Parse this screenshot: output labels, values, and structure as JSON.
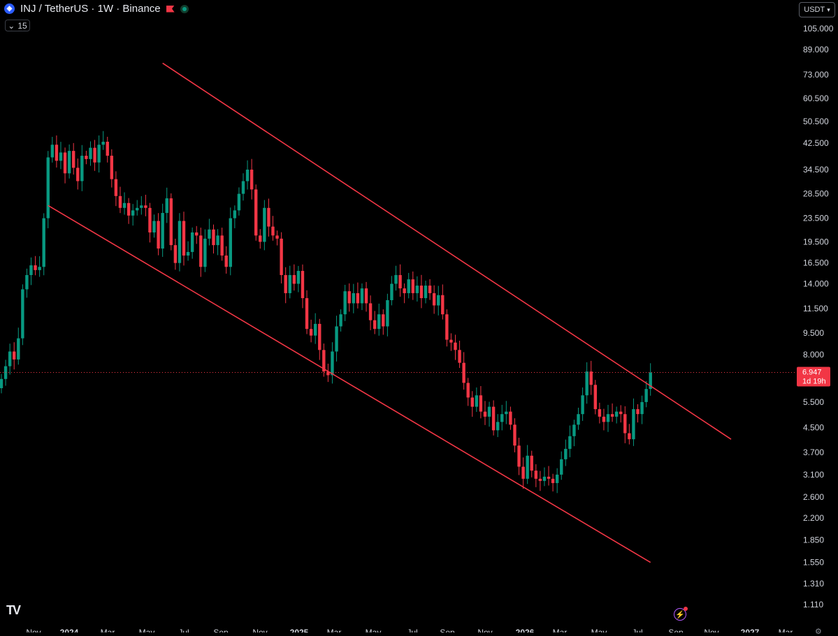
{
  "header": {
    "symbol_icon_name": "injective-logo-icon",
    "title": "INJ / TetherUS · 1W · Binance",
    "flag_icon_name": "flag-icon",
    "status_icon_name": "market-open-icon",
    "collapse_label": "15",
    "currency_label": "USDT"
  },
  "footer": {
    "logo_text": "TV",
    "bolt_icon_name": "bolt-icon",
    "settings_icon_name": "gear-icon"
  },
  "colors": {
    "up": "#089981",
    "down": "#f23645",
    "trendline": "#f23645",
    "background": "#000000",
    "axis_text": "#d1d4dc"
  },
  "chart_data": {
    "type": "candlestick",
    "title": "INJ / TetherUS · 1W · Binance",
    "scale": "log",
    "ylim": [
      1.0,
      118
    ],
    "x_tick_labels": [
      "Nov",
      "2024",
      "Mar",
      "May",
      "Jul",
      "Sep",
      "Nov",
      "2025",
      "Mar",
      "May",
      "Jul",
      "Sep",
      "Nov",
      "2026",
      "Mar",
      "May",
      "Jul",
      "Sep",
      "Nov",
      "2027",
      "Mar"
    ],
    "y_tick_labels": [
      "105.000",
      "89.000",
      "73.000",
      "60.500",
      "50.500",
      "42.500",
      "34.500",
      "28.500",
      "23.500",
      "19.500",
      "16.500",
      "14.000",
      "11.500",
      "9.500",
      "8.000",
      "5.500",
      "4.500",
      "3.700",
      "3.100",
      "2.600",
      "2.200",
      "1.850",
      "1.550",
      "1.310",
      "1.110"
    ],
    "last_price": "6.947",
    "countdown": "1d 19h",
    "closes": [
      6.6,
      7.3,
      8.2,
      7.7,
      9.1,
      13.4,
      15.0,
      16.2,
      15.6,
      16.0,
      23.5,
      38.0,
      42.0,
      37.0,
      39.5,
      33.5,
      40.0,
      35.0,
      31.5,
      38.5,
      37.5,
      41.0,
      36.5,
      42.0,
      43.0,
      38.5,
      32.0,
      28.0,
      25.5,
      26.5,
      24.0,
      25.0,
      25.5,
      26.0,
      25.5,
      21.0,
      23.0,
      18.5,
      24.5,
      27.5,
      19.0,
      16.5,
      23.0,
      17.5,
      18.0,
      21.0,
      20.5,
      16.0,
      20.0,
      21.5,
      19.0,
      20.5,
      17.5,
      16.0,
      23.5,
      25.0,
      28.5,
      31.5,
      34.5,
      29.5,
      20.5,
      19.5,
      25.5,
      22.0,
      20.5,
      20.0,
      15.0,
      13.0,
      15.0,
      14.0,
      15.5,
      12.5,
      9.8,
      9.3,
      10.2,
      8.3,
      7.0,
      6.8,
      8.2,
      10.0,
      11.0,
      13.2,
      12.0,
      13.0,
      12.0,
      13.5,
      12.0,
      10.5,
      9.8,
      11.0,
      10.0,
      12.3,
      14.0,
      15.0,
      13.5,
      13.0,
      14.5,
      13.0,
      13.8,
      12.5,
      13.8,
      13.0,
      11.8,
      12.8,
      11.0,
      9.0,
      8.8,
      8.3,
      7.5,
      6.4,
      5.7,
      5.3,
      5.8,
      5.1,
      4.9,
      5.3,
      4.4,
      4.7,
      5.0,
      5.1,
      4.6,
      3.9,
      3.3,
      3.0,
      3.6,
      3.2,
      3.0,
      2.95,
      3.05,
      3.0,
      2.9,
      3.1,
      3.5,
      3.8,
      4.2,
      4.6,
      5.0,
      5.8,
      7.0,
      6.3,
      5.2,
      4.9,
      4.7,
      5.0,
      4.9,
      5.1,
      5.0,
      4.3,
      4.1,
      5.2,
      5.0,
      5.5,
      6.1,
      6.947
    ],
    "trendlines": [
      {
        "name": "upper",
        "from": {
          "x": 38,
          "y": 80
        },
        "to": {
          "x": 172,
          "y": 4.1
        }
      },
      {
        "name": "lower",
        "from": {
          "x": 11,
          "y": 26
        },
        "to": {
          "x": 153,
          "y": 1.55
        }
      }
    ]
  }
}
